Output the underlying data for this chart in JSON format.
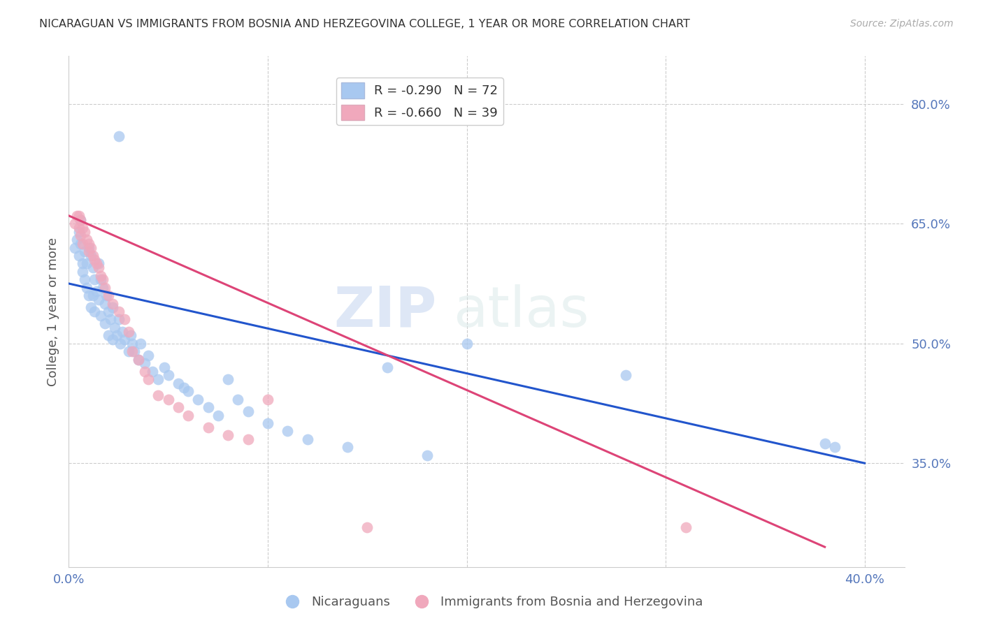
{
  "title": "NICARAGUAN VS IMMIGRANTS FROM BOSNIA AND HERZEGOVINA COLLEGE, 1 YEAR OR MORE CORRELATION CHART",
  "source": "Source: ZipAtlas.com",
  "ylabel": "College, 1 year or more",
  "legend_blue_r": "R = -0.290",
  "legend_blue_n": "N = 72",
  "legend_pink_r": "R = -0.660",
  "legend_pink_n": "N = 39",
  "legend_label_blue": "Nicaraguans",
  "legend_label_pink": "Immigrants from Bosnia and Herzegovina",
  "watermark_zip": "ZIP",
  "watermark_atlas": "atlas",
  "xlim": [
    0.0,
    0.42
  ],
  "ylim": [
    0.22,
    0.86
  ],
  "right_yticks": [
    0.8,
    0.65,
    0.5,
    0.35
  ],
  "right_ytick_labels": [
    "80.0%",
    "65.0%",
    "50.0%",
    "35.0%"
  ],
  "bottom_xtick_labels": [
    "0.0%",
    "",
    "",
    "",
    "40.0%"
  ],
  "blue_color": "#a8c8f0",
  "pink_color": "#f0a8bc",
  "line_blue": "#2255cc",
  "line_pink": "#dd4477",
  "blue_scatter": [
    [
      0.003,
      0.62
    ],
    [
      0.004,
      0.63
    ],
    [
      0.005,
      0.64
    ],
    [
      0.005,
      0.61
    ],
    [
      0.006,
      0.655
    ],
    [
      0.006,
      0.625
    ],
    [
      0.007,
      0.6
    ],
    [
      0.007,
      0.59
    ],
    [
      0.008,
      0.615
    ],
    [
      0.008,
      0.58
    ],
    [
      0.009,
      0.57
    ],
    [
      0.009,
      0.6
    ],
    [
      0.01,
      0.62
    ],
    [
      0.01,
      0.56
    ],
    [
      0.011,
      0.61
    ],
    [
      0.011,
      0.545
    ],
    [
      0.012,
      0.595
    ],
    [
      0.012,
      0.56
    ],
    [
      0.013,
      0.58
    ],
    [
      0.013,
      0.54
    ],
    [
      0.014,
      0.565
    ],
    [
      0.015,
      0.6
    ],
    [
      0.015,
      0.555
    ],
    [
      0.016,
      0.58
    ],
    [
      0.016,
      0.535
    ],
    [
      0.017,
      0.57
    ],
    [
      0.018,
      0.55
    ],
    [
      0.018,
      0.525
    ],
    [
      0.019,
      0.56
    ],
    [
      0.02,
      0.54
    ],
    [
      0.02,
      0.51
    ],
    [
      0.021,
      0.53
    ],
    [
      0.022,
      0.545
    ],
    [
      0.022,
      0.505
    ],
    [
      0.023,
      0.52
    ],
    [
      0.024,
      0.51
    ],
    [
      0.025,
      0.53
    ],
    [
      0.026,
      0.5
    ],
    [
      0.027,
      0.515
    ],
    [
      0.028,
      0.505
    ],
    [
      0.03,
      0.49
    ],
    [
      0.031,
      0.51
    ],
    [
      0.032,
      0.5
    ],
    [
      0.033,
      0.49
    ],
    [
      0.035,
      0.48
    ],
    [
      0.036,
      0.5
    ],
    [
      0.038,
      0.475
    ],
    [
      0.04,
      0.485
    ],
    [
      0.042,
      0.465
    ],
    [
      0.045,
      0.455
    ],
    [
      0.048,
      0.47
    ],
    [
      0.05,
      0.46
    ],
    [
      0.055,
      0.45
    ],
    [
      0.058,
      0.445
    ],
    [
      0.06,
      0.44
    ],
    [
      0.065,
      0.43
    ],
    [
      0.07,
      0.42
    ],
    [
      0.075,
      0.41
    ],
    [
      0.08,
      0.455
    ],
    [
      0.085,
      0.43
    ],
    [
      0.09,
      0.415
    ],
    [
      0.1,
      0.4
    ],
    [
      0.11,
      0.39
    ],
    [
      0.12,
      0.38
    ],
    [
      0.14,
      0.37
    ],
    [
      0.16,
      0.47
    ],
    [
      0.18,
      0.36
    ],
    [
      0.2,
      0.5
    ],
    [
      0.28,
      0.46
    ],
    [
      0.38,
      0.375
    ],
    [
      0.385,
      0.37
    ],
    [
      0.025,
      0.76
    ]
  ],
  "pink_scatter": [
    [
      0.003,
      0.65
    ],
    [
      0.004,
      0.66
    ],
    [
      0.005,
      0.66
    ],
    [
      0.005,
      0.645
    ],
    [
      0.006,
      0.655
    ],
    [
      0.006,
      0.635
    ],
    [
      0.007,
      0.645
    ],
    [
      0.007,
      0.625
    ],
    [
      0.008,
      0.64
    ],
    [
      0.009,
      0.63
    ],
    [
      0.01,
      0.625
    ],
    [
      0.01,
      0.615
    ],
    [
      0.011,
      0.62
    ],
    [
      0.012,
      0.61
    ],
    [
      0.013,
      0.605
    ],
    [
      0.014,
      0.6
    ],
    [
      0.015,
      0.595
    ],
    [
      0.016,
      0.585
    ],
    [
      0.017,
      0.58
    ],
    [
      0.018,
      0.57
    ],
    [
      0.02,
      0.56
    ],
    [
      0.022,
      0.55
    ],
    [
      0.025,
      0.54
    ],
    [
      0.028,
      0.53
    ],
    [
      0.03,
      0.515
    ],
    [
      0.032,
      0.49
    ],
    [
      0.035,
      0.48
    ],
    [
      0.038,
      0.465
    ],
    [
      0.04,
      0.455
    ],
    [
      0.045,
      0.435
    ],
    [
      0.05,
      0.43
    ],
    [
      0.055,
      0.42
    ],
    [
      0.06,
      0.41
    ],
    [
      0.07,
      0.395
    ],
    [
      0.08,
      0.385
    ],
    [
      0.09,
      0.38
    ],
    [
      0.1,
      0.43
    ],
    [
      0.31,
      0.27
    ],
    [
      0.15,
      0.27
    ]
  ],
  "blue_line_x": [
    0.0,
    0.4
  ],
  "blue_line_y": [
    0.575,
    0.35
  ],
  "pink_line_x": [
    0.0,
    0.38
  ],
  "pink_line_y": [
    0.66,
    0.245
  ],
  "grid_color": "#cccccc",
  "title_color": "#333333",
  "axis_color": "#5577bb",
  "background_color": "#ffffff"
}
